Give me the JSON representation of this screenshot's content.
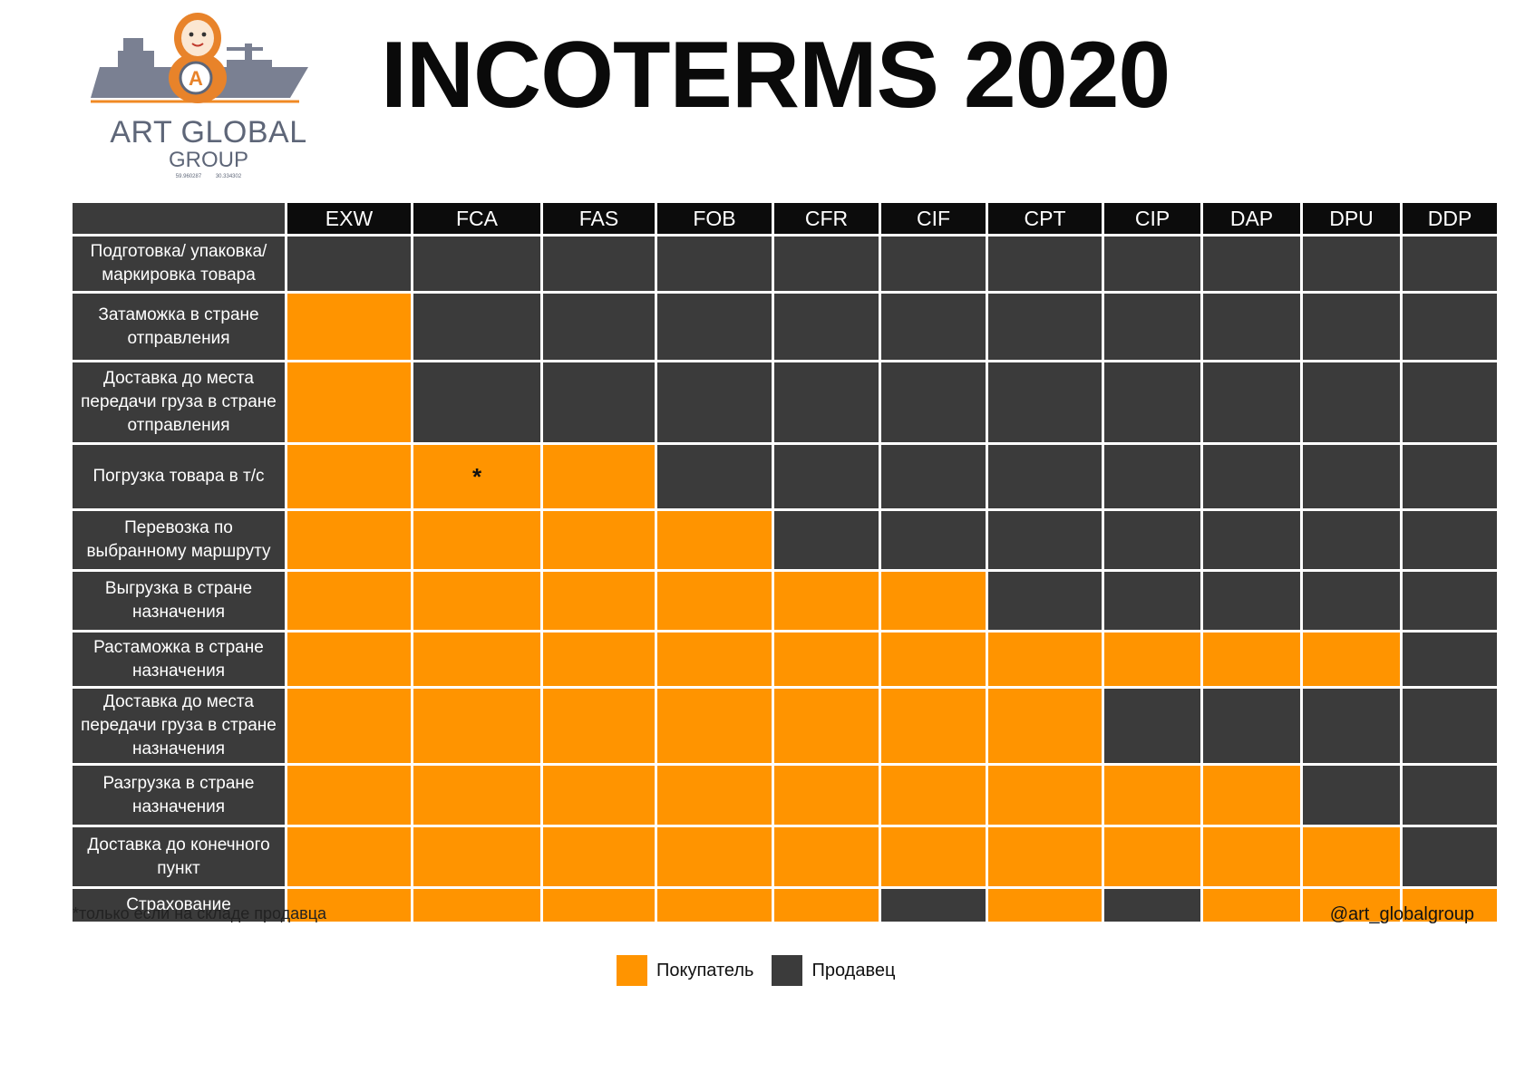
{
  "logo": {
    "name": "ART GLOBAL",
    "sub": "GROUP",
    "coords": "59.960287 30.334302",
    "icon": "matryoshka-ship-logo"
  },
  "title": "INCOTERMS 2020",
  "colors": {
    "buyer": "#ff9400",
    "seller": "#3b3b3b",
    "header": "#0c0c0c"
  },
  "chart_data": {
    "type": "table",
    "columns": [
      "EXW",
      "FCA",
      "FAS",
      "FOB",
      "CFR",
      "CIF",
      "CPT",
      "CIP",
      "DAP",
      "DPU",
      "DDP"
    ],
    "rows": [
      {
        "label": "Подготовка/ упаковка/\nмаркировка товара",
        "cells": [
          "S",
          "S",
          "S",
          "S",
          "S",
          "S",
          "S",
          "S",
          "S",
          "S",
          "S"
        ]
      },
      {
        "label": "Затаможка в стране\nотправления",
        "cells": [
          "B",
          "S",
          "S",
          "S",
          "S",
          "S",
          "S",
          "S",
          "S",
          "S",
          "S"
        ]
      },
      {
        "label": "Доставка до места\nпередачи груза в стране\nотправления",
        "cells": [
          "B",
          "S",
          "S",
          "S",
          "S",
          "S",
          "S",
          "S",
          "S",
          "S",
          "S"
        ]
      },
      {
        "label": "Погрузка товара в т/с",
        "cells": [
          "B",
          "B",
          "B",
          "S",
          "S",
          "S",
          "S",
          "S",
          "S",
          "S",
          "S"
        ],
        "marks": {
          "1": "*"
        }
      },
      {
        "label": "Перевозка по\nвыбранному маршруту",
        "cells": [
          "B",
          "B",
          "B",
          "B",
          "S",
          "S",
          "S",
          "S",
          "S",
          "S",
          "S"
        ]
      },
      {
        "label": "Выгрузка в стране\nназначения",
        "cells": [
          "B",
          "B",
          "B",
          "B",
          "B",
          "B",
          "S",
          "S",
          "S",
          "S",
          "S"
        ]
      },
      {
        "label": "Растаможка в стране\nназначения",
        "cells": [
          "B",
          "B",
          "B",
          "B",
          "B",
          "B",
          "B",
          "B",
          "B",
          "B",
          "S"
        ]
      },
      {
        "label": "Доставка до места\nпередачи груза в стране\nназначения",
        "cells": [
          "B",
          "B",
          "B",
          "B",
          "B",
          "B",
          "B",
          "S",
          "S",
          "S",
          "S"
        ]
      },
      {
        "label": "Разгрузка в стране\nназначения",
        "cells": [
          "B",
          "B",
          "B",
          "B",
          "B",
          "B",
          "B",
          "B",
          "B",
          "S",
          "S"
        ]
      },
      {
        "label": "Доставка до конечного\nпункт",
        "cells": [
          "B",
          "B",
          "B",
          "B",
          "B",
          "B",
          "B",
          "B",
          "B",
          "B",
          "S"
        ]
      },
      {
        "label": "Страхование",
        "cells": [
          "B",
          "B",
          "B",
          "B",
          "B",
          "S",
          "B",
          "S",
          "B",
          "B",
          "B"
        ]
      }
    ]
  },
  "legend": [
    {
      "key": "B",
      "label": "Покупатель"
    },
    {
      "key": "S",
      "label": "Продавец"
    }
  ],
  "footnote": "*только если на складе продавца",
  "handle": "@art_globalgroup"
}
